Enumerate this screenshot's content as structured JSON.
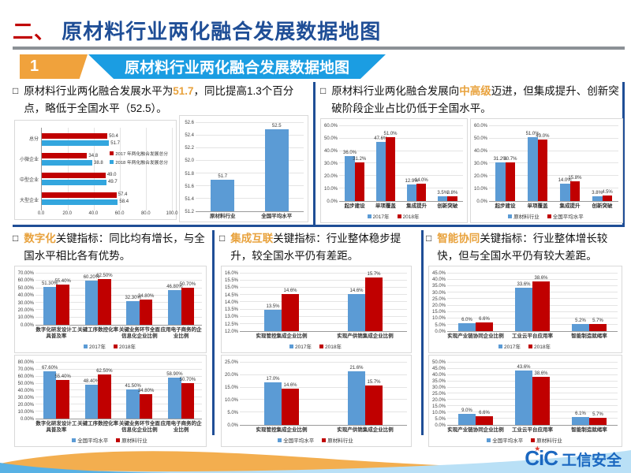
{
  "slide": {
    "title": {
      "prefix": "二、",
      "text": "原材料行业两化融合发展数据地图"
    },
    "banner": {
      "number": "1",
      "label": "原材料行业两化融合发展数据地图"
    },
    "logo": {
      "latin": "CiC",
      "cn": "工信安全"
    }
  },
  "icons": {
    "bullet": "□",
    "logo_star": "★"
  },
  "colors": {
    "title_blue": "#1F4E96",
    "title_red": "#C00000",
    "banner_orange": "#F0A23C",
    "banner_blue": "#1B9DE2",
    "highlight_orange": "#E8A23D",
    "chart_blue": "#5B9BD5",
    "chart_red": "#C00000",
    "chart_sky": "#33A6DE"
  },
  "panels": {
    "top_left": {
      "pre": "原材料行业两化融合发展水平为",
      "highlight": "51.7",
      "post": "，同比提高1.3个百分点，略低于全国水平（52.5）。"
    },
    "top_right": {
      "pre": "原材料行业两化融合发展向",
      "highlight": "中高级",
      "post": "迈进，但集成提升、创新突破阶段企业占比仍低于全国水平。"
    },
    "bottom_digital": {
      "pre": "",
      "highlight": "数字化",
      "post": "关键指标：同比均有增长，与全国水平相比各有优势。"
    },
    "bottom_integration": {
      "pre": "",
      "highlight": "集成互联",
      "post": "关键指标：行业整体稳步提升，较全国水平仍有差距。"
    },
    "bottom_smart": {
      "pre": "",
      "highlight": "智能协同",
      "post": "关键指标：行业整体增长较快，但与全国水平仍有较大差距。"
    }
  },
  "chart_data": [
    {
      "id": "score_by_scale",
      "type": "barh",
      "categories": [
        "总分",
        "小微企业",
        "中型企业",
        "大型企业"
      ],
      "series": [
        {
          "name": "2017 年两化融合发展总分",
          "color": "#C00000",
          "values": [
            50.4,
            34.8,
            49.0,
            57.4
          ]
        },
        {
          "name": "2018 年两化融合发展总分",
          "color": "#33A6DE",
          "values": [
            51.7,
            38.8,
            49.7,
            58.4
          ]
        }
      ],
      "xlim": [
        0,
        100
      ],
      "xticks": [
        "0.0",
        "20.0",
        "40.0",
        "60.0",
        "80.0",
        "100.0"
      ],
      "value_decimals": 1,
      "value_suffix": "",
      "legend": "inside"
    },
    {
      "id": "score_vs_national",
      "type": "bar",
      "categories": [
        "原材料行业",
        "全国平均水平"
      ],
      "series": [
        {
          "name": "",
          "color": "#5B9BD5",
          "values": [
            51.7,
            52.5
          ]
        }
      ],
      "ylim": [
        51.2,
        52.6
      ],
      "yticks": [
        "51.2",
        "51.4",
        "51.6",
        "51.8",
        "52.0",
        "52.2",
        "52.4",
        "52.6"
      ],
      "value_decimals": 1,
      "value_suffix": "",
      "legend": "none"
    },
    {
      "id": "stage_yoy",
      "type": "bar",
      "categories": [
        "起步建设",
        "单项覆盖",
        "集成提升",
        "创新突破"
      ],
      "series": [
        {
          "name": "2017年",
          "color": "#5B9BD5",
          "values": [
            36.0,
            47.6,
            12.9,
            3.5
          ]
        },
        {
          "name": "2018年",
          "color": "#C00000",
          "values": [
            31.2,
            51.0,
            14.0,
            3.8
          ]
        }
      ],
      "ylim": [
        0,
        60
      ],
      "yticks": [
        "0.0%",
        "10.0%",
        "20.0%",
        "30.0%",
        "40.0%",
        "50.0%",
        "60.0%"
      ],
      "value_decimals": 1,
      "value_suffix": "%",
      "legend": "bottom"
    },
    {
      "id": "stage_vs_national",
      "type": "bar",
      "categories": [
        "起步建设",
        "单项覆盖",
        "集成提升",
        "创新突破"
      ],
      "series": [
        {
          "name": "原材料行业",
          "color": "#5B9BD5",
          "values": [
            31.2,
            51.0,
            14.0,
            3.8
          ]
        },
        {
          "name": "全国平均水平",
          "color": "#C00000",
          "values": [
            30.7,
            49.0,
            15.8,
            4.5
          ]
        }
      ],
      "ylim": [
        0,
        60
      ],
      "yticks": [
        "0.0%",
        "10.0%",
        "20.0%",
        "30.0%",
        "40.0%",
        "50.0%",
        "60.0%"
      ],
      "value_decimals": 1,
      "value_suffix": "%",
      "legend": "bottom"
    },
    {
      "id": "digital_yoy",
      "type": "bar",
      "categories": [
        "数字化研发设计工具普及率",
        "关键工序数控化率",
        "关键业务环节全面信息化企业比例",
        "应用电子商务的企业比例"
      ],
      "series": [
        {
          "name": "2017年",
          "color": "#5B9BD5",
          "values": [
            51.3,
            60.2,
            32.3,
            46.8
          ]
        },
        {
          "name": "2018年",
          "color": "#C00000",
          "values": [
            55.4,
            62.5,
            34.8,
            50.7
          ]
        }
      ],
      "ylim": [
        0,
        70
      ],
      "yticks": [
        "0.00%",
        "10.00%",
        "20.00%",
        "30.00%",
        "40.00%",
        "50.00%",
        "60.00%",
        "70.00%"
      ],
      "value_decimals": 2,
      "value_suffix": "%",
      "legend": "bottom"
    },
    {
      "id": "digital_vs_national",
      "type": "bar",
      "categories": [
        "数字化研发设计工具普及率",
        "关键工序数控化率",
        "关键业务环节全面信息化企业比例",
        "应用电子商务的企业比例"
      ],
      "series": [
        {
          "name": "全国平均水平",
          "color": "#5B9BD5",
          "values": [
            67.6,
            48.4,
            41.5,
            58.9
          ]
        },
        {
          "name": "原材料行业",
          "color": "#C00000",
          "values": [
            55.4,
            62.5,
            34.8,
            50.7
          ]
        }
      ],
      "ylim": [
        0,
        80
      ],
      "yticks": [
        "0.00%",
        "10.00%",
        "20.00%",
        "30.00%",
        "40.00%",
        "50.00%",
        "60.00%",
        "70.00%",
        "80.00%"
      ],
      "value_decimals": 2,
      "value_suffix": "%",
      "legend": "bottom"
    },
    {
      "id": "integration_yoy",
      "type": "bar",
      "categories": [
        "实现管控集成企业比例",
        "实现产供销集成企业比例"
      ],
      "series": [
        {
          "name": "2017年",
          "color": "#5B9BD5",
          "values": [
            13.5,
            14.6
          ]
        },
        {
          "name": "2018年",
          "color": "#C00000",
          "values": [
            14.6,
            15.7
          ]
        }
      ],
      "ylim": [
        12,
        16
      ],
      "yticks": [
        "12.0%",
        "12.5%",
        "13.0%",
        "13.5%",
        "14.0%",
        "14.5%",
        "15.0%",
        "15.5%",
        "16.0%"
      ],
      "value_decimals": 1,
      "value_suffix": "%",
      "legend": "bottom"
    },
    {
      "id": "integration_vs_national",
      "type": "bar",
      "categories": [
        "实现管控集成企业比例",
        "实现产供销集成企业比例"
      ],
      "series": [
        {
          "name": "全国平均水平",
          "color": "#5B9BD5",
          "values": [
            17.0,
            21.6
          ]
        },
        {
          "name": "原材料行业",
          "color": "#C00000",
          "values": [
            14.6,
            15.7
          ]
        }
      ],
      "ylim": [
        0,
        25
      ],
      "yticks": [
        "0.0%",
        "5.0%",
        "10.0%",
        "15.0%",
        "20.0%",
        "25.0%"
      ],
      "value_decimals": 1,
      "value_suffix": "%",
      "legend": "bottom"
    },
    {
      "id": "smart_yoy",
      "type": "bar",
      "categories": [
        "实现产业链协同企业比例",
        "工业云平台应用率",
        "智能制造就绪率"
      ],
      "series": [
        {
          "name": "2017年",
          "color": "#5B9BD5",
          "values": [
            6.0,
            33.6,
            5.2
          ]
        },
        {
          "name": "2018年",
          "color": "#C00000",
          "values": [
            6.6,
            38.6,
            5.7
          ]
        }
      ],
      "ylim": [
        0,
        45
      ],
      "yticks": [
        "0.0%",
        "5.0%",
        "10.0%",
        "15.0%",
        "20.0%",
        "25.0%",
        "30.0%",
        "35.0%",
        "40.0%",
        "45.0%"
      ],
      "value_decimals": 1,
      "value_suffix": "%",
      "legend": "bottom"
    },
    {
      "id": "smart_vs_national",
      "type": "bar",
      "categories": [
        "实现产业链协同企业比例",
        "工业云平台应用率",
        "智能制造就绪率"
      ],
      "series": [
        {
          "name": "全国平均水平",
          "color": "#5B9BD5",
          "values": [
            9.0,
            43.6,
            6.1
          ]
        },
        {
          "name": "原材料行业",
          "color": "#C00000",
          "values": [
            6.6,
            38.6,
            5.7
          ]
        }
      ],
      "ylim": [
        0,
        50
      ],
      "yticks": [
        "0.0%",
        "5.0%",
        "10.0%",
        "15.0%",
        "20.0%",
        "25.0%",
        "30.0%",
        "35.0%",
        "40.0%",
        "45.0%",
        "50.0%"
      ],
      "value_decimals": 1,
      "value_suffix": "%",
      "legend": "bottom"
    }
  ]
}
